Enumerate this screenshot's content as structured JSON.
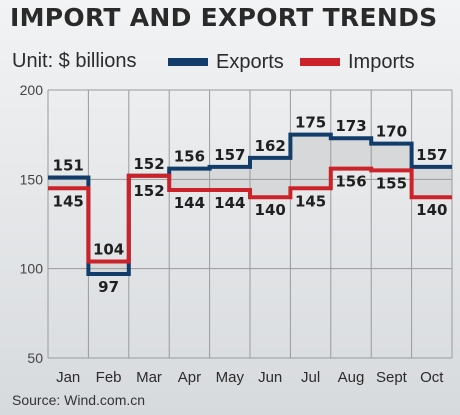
{
  "title": "IMPORT AND EXPORT TRENDS",
  "unit": "Unit: $ billions",
  "source": "Source: Wind.com.cn",
  "chart_data": {
    "type": "line",
    "step": true,
    "categories": [
      "Jan",
      "Feb",
      "Mar",
      "Apr",
      "May",
      "Jun",
      "Jul",
      "Aug",
      "Sept",
      "Oct"
    ],
    "series": [
      {
        "name": "Exports",
        "color": "#123d6b",
        "values": [
          151,
          97,
          152,
          156,
          157,
          162,
          175,
          173,
          170,
          157
        ]
      },
      {
        "name": "Imports",
        "color": "#cc2229",
        "values": [
          145,
          104,
          152,
          144,
          144,
          140,
          145,
          156,
          155,
          140
        ]
      }
    ],
    "yticks": [
      50,
      100,
      150,
      200
    ],
    "ylim": [
      50,
      200
    ],
    "grid": true,
    "legend_position": "top",
    "fill_between": "#d6d8da"
  }
}
